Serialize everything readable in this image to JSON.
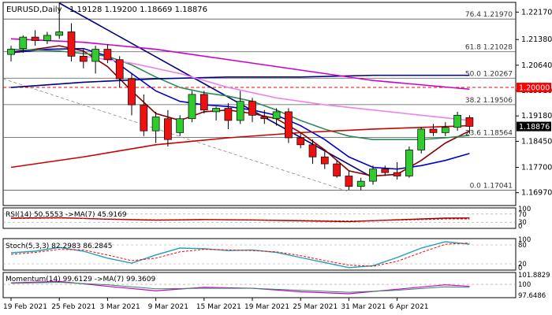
{
  "chart_data": {
    "type": "candlestick",
    "title": "EURUSD,Daily",
    "ohlc_label": "1.19128 1.19200 1.18669 1.18876",
    "last_price": "1.18876",
    "level_label": "1.20000",
    "x_tick_labels": [
      {
        "label": "19 Feb 2021",
        "i": 0
      },
      {
        "label": "25 Feb 2021",
        "i": 4
      },
      {
        "label": "3 Mar 2021",
        "i": 8
      },
      {
        "label": "9 Mar 2021",
        "i": 12
      },
      {
        "label": "15 Mar 2021",
        "i": 16
      },
      {
        "label": "19 Mar 2021",
        "i": 20
      },
      {
        "label": "25 Mar 2021",
        "i": 24
      },
      {
        "label": "31 Mar 2021",
        "i": 28
      },
      {
        "label": "6 Apr 2021",
        "i": 32
      }
    ],
    "price_axis": {
      "ylim": [
        1.166,
        1.2245
      ],
      "ticks": [
        1.2217,
        1.2138,
        1.2064,
        1.1991,
        1.1918,
        1.1845,
        1.177,
        1.1697
      ],
      "tick_labels": [
        "1.22170",
        "1.21380",
        "1.20640",
        "1.19910",
        "1.19180",
        "1.18450",
        "1.17700",
        "1.16970"
      ]
    },
    "fib_levels": [
      {
        "label": "76.4 1.21970",
        "value": 1.2197
      },
      {
        "label": "61.8 1.21028",
        "value": 1.21028
      },
      {
        "label": "50.0 1.20267",
        "value": 1.20267
      },
      {
        "label": "38.2 1.19506",
        "value": 1.19506
      },
      {
        "label": "23.6 1.18564",
        "value": 1.18564
      },
      {
        "label": "0.0 1.17041",
        "value": 1.17041
      }
    ],
    "candles": [
      {
        "o": 1.2095,
        "h": 1.212,
        "l": 1.2075,
        "c": 1.211
      },
      {
        "o": 1.2112,
        "h": 1.215,
        "l": 1.21,
        "c": 1.2145
      },
      {
        "o": 1.2145,
        "h": 1.2165,
        "l": 1.212,
        "c": 1.2135
      },
      {
        "o": 1.2135,
        "h": 1.216,
        "l": 1.2125,
        "c": 1.215
      },
      {
        "o": 1.215,
        "h": 1.2243,
        "l": 1.214,
        "c": 1.216
      },
      {
        "o": 1.216,
        "h": 1.2185,
        "l": 1.2075,
        "c": 1.209
      },
      {
        "o": 1.209,
        "h": 1.211,
        "l": 1.2055,
        "c": 1.2075
      },
      {
        "o": 1.2075,
        "h": 1.212,
        "l": 1.204,
        "c": 1.211
      },
      {
        "o": 1.211,
        "h": 1.2125,
        "l": 1.207,
        "c": 1.208
      },
      {
        "o": 1.208,
        "h": 1.209,
        "l": 1.2,
        "c": 1.2025
      },
      {
        "o": 1.2025,
        "h": 1.204,
        "l": 1.192,
        "c": 1.195
      },
      {
        "o": 1.195,
        "h": 1.198,
        "l": 1.186,
        "c": 1.1875
      },
      {
        "o": 1.1875,
        "h": 1.193,
        "l": 1.184,
        "c": 1.1915
      },
      {
        "o": 1.191,
        "h": 1.1935,
        "l": 1.183,
        "c": 1.185
      },
      {
        "o": 1.187,
        "h": 1.192,
        "l": 1.186,
        "c": 1.191
      },
      {
        "o": 1.191,
        "h": 1.199,
        "l": 1.19,
        "c": 1.198
      },
      {
        "o": 1.198,
        "h": 1.199,
        "l": 1.1925,
        "c": 1.1935
      },
      {
        "o": 1.193,
        "h": 1.1945,
        "l": 1.1905,
        "c": 1.194
      },
      {
        "o": 1.194,
        "h": 1.1955,
        "l": 1.188,
        "c": 1.1905
      },
      {
        "o": 1.1905,
        "h": 1.199,
        "l": 1.1895,
        "c": 1.196
      },
      {
        "o": 1.196,
        "h": 1.197,
        "l": 1.19,
        "c": 1.192
      },
      {
        "o": 1.1915,
        "h": 1.1935,
        "l": 1.1895,
        "c": 1.191
      },
      {
        "o": 1.191,
        "h": 1.194,
        "l": 1.189,
        "c": 1.193
      },
      {
        "o": 1.193,
        "h": 1.194,
        "l": 1.184,
        "c": 1.1855
      },
      {
        "o": 1.1855,
        "h": 1.187,
        "l": 1.1825,
        "c": 1.1835
      },
      {
        "o": 1.1835,
        "h": 1.185,
        "l": 1.178,
        "c": 1.18
      },
      {
        "o": 1.18,
        "h": 1.1815,
        "l": 1.1765,
        "c": 1.178
      },
      {
        "o": 1.178,
        "h": 1.179,
        "l": 1.174,
        "c": 1.1745
      },
      {
        "o": 1.1745,
        "h": 1.176,
        "l": 1.1705,
        "c": 1.1715
      },
      {
        "o": 1.1715,
        "h": 1.174,
        "l": 1.1704,
        "c": 1.173
      },
      {
        "o": 1.173,
        "h": 1.1775,
        "l": 1.172,
        "c": 1.1765
      },
      {
        "o": 1.1765,
        "h": 1.1775,
        "l": 1.1745,
        "c": 1.1755
      },
      {
        "o": 1.1755,
        "h": 1.1785,
        "l": 1.1735,
        "c": 1.1745
      },
      {
        "o": 1.1745,
        "h": 1.183,
        "l": 1.174,
        "c": 1.182
      },
      {
        "o": 1.182,
        "h": 1.1885,
        "l": 1.181,
        "c": 1.188
      },
      {
        "o": 1.188,
        "h": 1.1895,
        "l": 1.186,
        "c": 1.187
      },
      {
        "o": 1.187,
        "h": 1.19,
        "l": 1.186,
        "c": 1.1885
      },
      {
        "o": 1.1885,
        "h": 1.193,
        "l": 1.1875,
        "c": 1.192
      },
      {
        "o": 1.1913,
        "h": 1.192,
        "l": 1.1867,
        "c": 1.1888
      }
    ],
    "moving_averages": [
      {
        "color": "#8b0000",
        "points": [
          [
            0,
            1.2102
          ],
          [
            2,
            1.211
          ],
          [
            4,
            1.212
          ],
          [
            6,
            1.2105
          ],
          [
            8,
            1.206
          ],
          [
            10,
            1.199
          ],
          [
            12,
            1.1925
          ],
          [
            14,
            1.1905
          ],
          [
            16,
            1.193
          ],
          [
            18,
            1.1935
          ],
          [
            20,
            1.1925
          ],
          [
            22,
            1.191
          ],
          [
            24,
            1.187
          ],
          [
            26,
            1.182
          ],
          [
            28,
            1.176
          ],
          [
            30,
            1.1745
          ],
          [
            32,
            1.175
          ],
          [
            34,
            1.179
          ],
          [
            36,
            1.184
          ],
          [
            38,
            1.1875
          ]
        ]
      },
      {
        "color": "#0000cd",
        "points": [
          [
            0,
            1.21
          ],
          [
            3,
            1.211
          ],
          [
            6,
            1.2112
          ],
          [
            8,
            1.209
          ],
          [
            10,
            1.204
          ],
          [
            12,
            1.199
          ],
          [
            14,
            1.196
          ],
          [
            16,
            1.195
          ],
          [
            18,
            1.1945
          ],
          [
            20,
            1.1935
          ],
          [
            22,
            1.192
          ],
          [
            24,
            1.189
          ],
          [
            26,
            1.185
          ],
          [
            28,
            1.18
          ],
          [
            30,
            1.177
          ],
          [
            32,
            1.1765
          ],
          [
            34,
            1.1775
          ],
          [
            36,
            1.179
          ],
          [
            38,
            1.181
          ]
        ]
      },
      {
        "color": "#2e8b57",
        "points": [
          [
            0,
            1.211
          ],
          [
            4,
            1.2105
          ],
          [
            8,
            1.209
          ],
          [
            10,
            1.2065
          ],
          [
            12,
            1.203
          ],
          [
            14,
            1.2
          ],
          [
            16,
            1.1985
          ],
          [
            18,
            1.1975
          ],
          [
            20,
            1.196
          ],
          [
            22,
            1.1935
          ],
          [
            24,
            1.1905
          ],
          [
            26,
            1.188
          ],
          [
            28,
            1.186
          ],
          [
            30,
            1.185
          ],
          [
            32,
            1.185
          ],
          [
            34,
            1.185
          ],
          [
            36,
            1.1855
          ],
          [
            38,
            1.1862
          ]
        ]
      },
      {
        "color": "#000080",
        "points": [
          [
            0,
            1.2
          ],
          [
            6,
            1.2015
          ],
          [
            12,
            1.2025
          ],
          [
            18,
            1.203
          ],
          [
            24,
            1.203
          ],
          [
            30,
            1.2035
          ],
          [
            38,
            1.2035
          ]
        ]
      },
      {
        "color": "#cc00cc",
        "points": [
          [
            0,
            1.214
          ],
          [
            6,
            1.213
          ],
          [
            12,
            1.211
          ],
          [
            18,
            1.208
          ],
          [
            24,
            1.205
          ],
          [
            30,
            1.202
          ],
          [
            38,
            1.1995
          ]
        ]
      },
      {
        "color": "#ee82ee",
        "points": [
          [
            6,
            1.209
          ],
          [
            10,
            1.207
          ],
          [
            14,
            1.204
          ],
          [
            18,
            1.2
          ],
          [
            22,
            1.197
          ],
          [
            26,
            1.195
          ],
          [
            30,
            1.1935
          ],
          [
            34,
            1.192
          ],
          [
            38,
            1.1905
          ]
        ]
      },
      {
        "color": "#cc0000",
        "points": [
          [
            0,
            1.177
          ],
          [
            6,
            1.18
          ],
          [
            12,
            1.1835
          ],
          [
            18,
            1.1855
          ],
          [
            24,
            1.187
          ],
          [
            30,
            1.188
          ],
          [
            34,
            1.1885
          ],
          [
            38,
            1.189
          ]
        ]
      }
    ],
    "rsi": {
      "label": "RSI(14) 50.5553 ->MA(7) 45.9169",
      "ylim": [
        0,
        100
      ],
      "tick_labels": [
        "100",
        "70",
        "30",
        "0"
      ],
      "ticks": [
        100,
        70,
        30,
        0
      ],
      "rsi_points": [
        [
          0,
          50
        ],
        [
          4,
          52
        ],
        [
          8,
          45
        ],
        [
          12,
          40
        ],
        [
          16,
          43
        ],
        [
          20,
          41
        ],
        [
          24,
          37
        ],
        [
          28,
          33
        ],
        [
          32,
          42
        ],
        [
          36,
          50
        ],
        [
          38,
          50.6
        ]
      ],
      "ma_points": [
        [
          0,
          48
        ],
        [
          4,
          50
        ],
        [
          8,
          46
        ],
        [
          12,
          42
        ],
        [
          16,
          42
        ],
        [
          20,
          41
        ],
        [
          24,
          39
        ],
        [
          28,
          36
        ],
        [
          32,
          40
        ],
        [
          36,
          46
        ],
        [
          38,
          45.9
        ]
      ]
    },
    "stochastic": {
      "label": "Stoch(5,3,3) 82.2983 86.2845",
      "ylim": [
        0,
        100
      ],
      "tick_labels": [
        "100",
        "80",
        "20",
        "0"
      ],
      "ticks": [
        100,
        80,
        20,
        0
      ],
      "k_points": [
        [
          0,
          55
        ],
        [
          2,
          60
        ],
        [
          4,
          72
        ],
        [
          6,
          60
        ],
        [
          8,
          38
        ],
        [
          10,
          22
        ],
        [
          12,
          48
        ],
        [
          14,
          70
        ],
        [
          16,
          68
        ],
        [
          18,
          62
        ],
        [
          20,
          64
        ],
        [
          22,
          56
        ],
        [
          24,
          40
        ],
        [
          26,
          24
        ],
        [
          28,
          8
        ],
        [
          30,
          14
        ],
        [
          32,
          40
        ],
        [
          34,
          70
        ],
        [
          36,
          90
        ],
        [
          38,
          82.3
        ]
      ],
      "d_points": [
        [
          0,
          50
        ],
        [
          2,
          56
        ],
        [
          4,
          66
        ],
        [
          6,
          64
        ],
        [
          8,
          48
        ],
        [
          10,
          30
        ],
        [
          12,
          38
        ],
        [
          14,
          58
        ],
        [
          16,
          66
        ],
        [
          18,
          64
        ],
        [
          20,
          62
        ],
        [
          22,
          58
        ],
        [
          24,
          46
        ],
        [
          26,
          30
        ],
        [
          28,
          16
        ],
        [
          30,
          12
        ],
        [
          32,
          28
        ],
        [
          34,
          56
        ],
        [
          36,
          82
        ],
        [
          38,
          86.3
        ]
      ]
    },
    "momentum": {
      "label": "Momentum(14) 99.6129 ->MA(7) 99.3609",
      "ylim": [
        97.3,
        102.4
      ],
      "tick_labels": [
        "101.8829",
        "100",
        "97.6486"
      ],
      "ticks": [
        101.8829,
        100,
        97.6486
      ],
      "mom_points": [
        [
          0,
          100.3
        ],
        [
          4,
          100.6
        ],
        [
          8,
          99.6
        ],
        [
          12,
          98.7
        ],
        [
          16,
          99.4
        ],
        [
          20,
          99.2
        ],
        [
          24,
          98.5
        ],
        [
          28,
          98.1
        ],
        [
          32,
          99.0
        ],
        [
          36,
          99.9
        ],
        [
          38,
          99.6
        ]
      ],
      "ma_points": [
        [
          0,
          100.2
        ],
        [
          4,
          100.4
        ],
        [
          8,
          99.9
        ],
        [
          12,
          99.1
        ],
        [
          16,
          99.2
        ],
        [
          20,
          99.2
        ],
        [
          24,
          98.8
        ],
        [
          28,
          98.4
        ],
        [
          32,
          98.8
        ],
        [
          36,
          99.5
        ],
        [
          38,
          99.4
        ]
      ]
    }
  }
}
